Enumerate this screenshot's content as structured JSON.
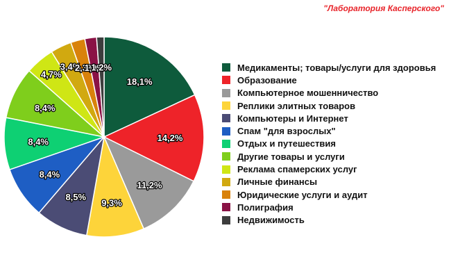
{
  "brand": "\"Лаборатория Касперского\"",
  "chart_data": {
    "type": "pie",
    "title": "",
    "legend_position": "right",
    "start": "top",
    "direction": "clockwise",
    "slices": [
      {
        "label": "Медикаменты; товары/услуги для здоровья",
        "value": 18.1,
        "value_label": "18,1%",
        "color": "#0e5b3c"
      },
      {
        "label": "Образование",
        "value": 14.2,
        "value_label": "14,2%",
        "color": "#ee2329"
      },
      {
        "label": "Компьютерное мошенничество",
        "value": 11.2,
        "value_label": "11,2%",
        "color": "#9a9a9a"
      },
      {
        "label": "Реплики элитных товаров",
        "value": 9.3,
        "value_label": "9,3%",
        "color": "#fdd43a"
      },
      {
        "label": "Компьютеры и Интернет",
        "value": 8.5,
        "value_label": "8,5%",
        "color": "#4b4c75"
      },
      {
        "label": "Спам \"для взрослых\"",
        "value": 8.4,
        "value_label": "8,4%",
        "color": "#1e5ec4"
      },
      {
        "label": "Отдых и путешествия",
        "value": 8.4,
        "value_label": "8,4%",
        "color": "#0ed073"
      },
      {
        "label": "Другие товары и услуги",
        "value": 8.4,
        "value_label": "8,4%",
        "color": "#7fce1c"
      },
      {
        "label": "Реклама спамерских услуг",
        "value": 4.7,
        "value_label": "4,7%",
        "color": "#cfe615"
      },
      {
        "label": "Личные финансы",
        "value": 3.4,
        "value_label": "3,4%",
        "color": "#d1a910"
      },
      {
        "label": "Юридические услуги и аудит",
        "value": 2.3,
        "value_label": "2,3%",
        "color": "#d9820b"
      },
      {
        "label": "Полиграфия",
        "value": 1.9,
        "value_label": "1,9%",
        "color": "#8a1245"
      },
      {
        "label": "Недвижимость",
        "value": 1.2,
        "value_label": "1,2%",
        "color": "#3d3d3d"
      }
    ]
  }
}
